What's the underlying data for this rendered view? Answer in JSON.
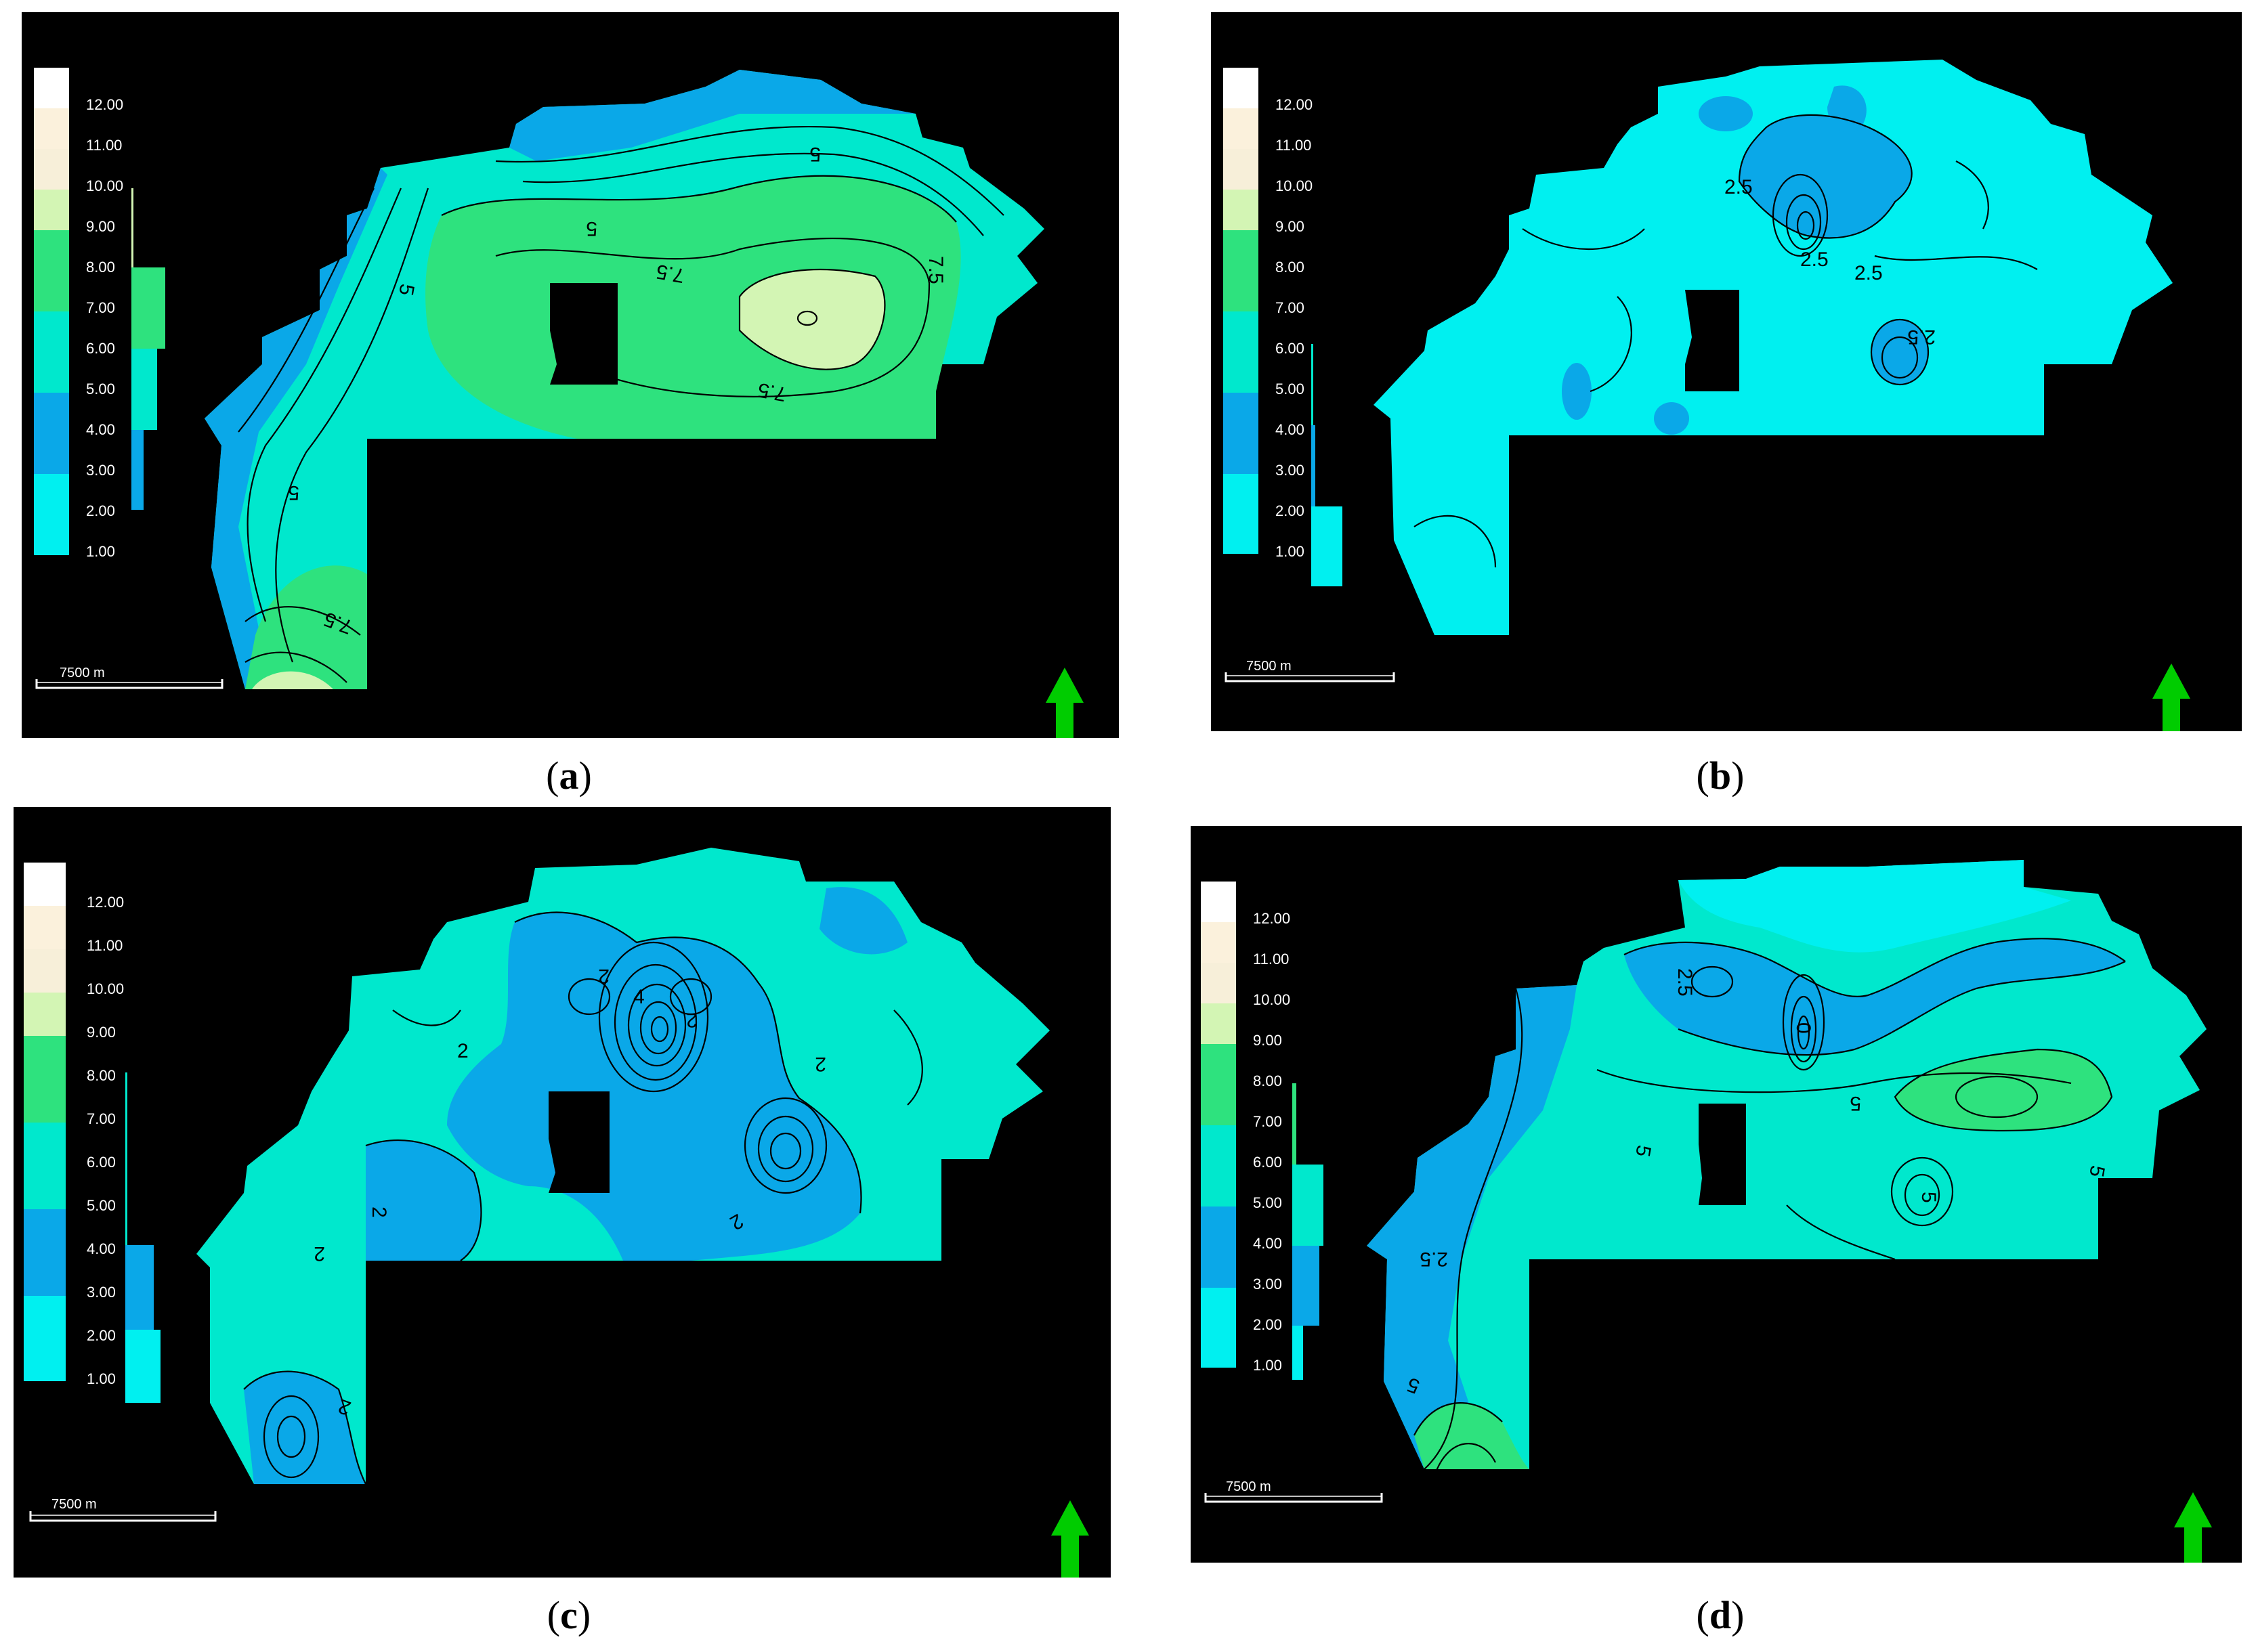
{
  "legend": {
    "ticks": [
      "12.00",
      "11.00",
      "10.00",
      "9.00",
      "8.00",
      "7.00",
      "6.00",
      "5.00",
      "4.00",
      "3.00",
      "2.00",
      "1.00"
    ],
    "colors": [
      "#ffffff",
      "#fbf1dc",
      "#f7efd9",
      "#d3f5b4",
      "#2ee27e",
      "#2ee27e",
      "#00e8cd",
      "#00e8cd",
      "#0aa8e8",
      "#0aa8e8",
      "#00f0f0",
      "#00f0f0"
    ]
  },
  "scale_bar": {
    "label": "7500 m"
  },
  "colors": {
    "cyan": "#00f0f0",
    "blue": "#0aa8e8",
    "teal": "#00e8cd",
    "green": "#2ee27e",
    "light_green": "#d3f5b4",
    "north_arrow": "#00cc00"
  },
  "panels": [
    {
      "id": "a",
      "caption": "a",
      "contour_labels": [
        "5",
        "5",
        "5",
        "5",
        "7.5",
        "7.5",
        "7.5",
        "7.5"
      ]
    },
    {
      "id": "b",
      "caption": "b",
      "contour_labels": [
        "2.5",
        "2.5",
        "2.5",
        "2.5"
      ]
    },
    {
      "id": "c",
      "caption": "c",
      "contour_labels": [
        "2",
        "2",
        "2",
        "2",
        "2",
        "4",
        "2",
        "2",
        "2",
        "2"
      ]
    },
    {
      "id": "d",
      "caption": "d",
      "contour_labels": [
        "2.5",
        "0",
        "5",
        "5",
        "5",
        "5",
        "2.5",
        "5"
      ]
    }
  ]
}
